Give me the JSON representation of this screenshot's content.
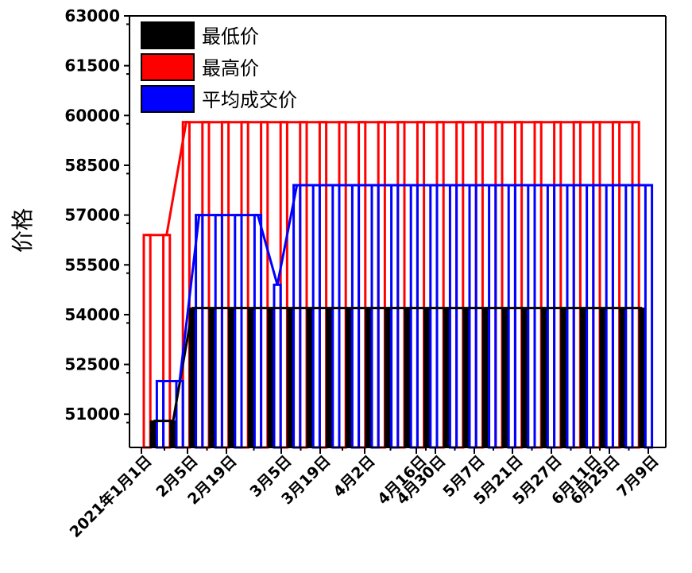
{
  "chart_data": {
    "type": "bar",
    "ylabel": "价格",
    "xlabel": "",
    "ylim": [
      50000,
      63000
    ],
    "yticks": [
      51000,
      52500,
      54000,
      55500,
      57000,
      58500,
      60000,
      61500,
      63000
    ],
    "xtick_labels": [
      "2021年1月1日",
      "2月5日",
      "2月19日",
      "3月5日",
      "3月19日",
      "4月2日",
      "4月16日",
      "4月30日",
      "5月7日",
      "5月21日",
      "5月27日",
      "6月11日",
      "6月25日",
      "7月9日"
    ],
    "legend": {
      "position": "top-left"
    },
    "series": [
      {
        "name": "最低价",
        "color": "#000000",
        "values": [
          50800,
          50800,
          54200,
          54200,
          54200,
          54200,
          54200,
          54200,
          54200,
          54200,
          54200,
          54200,
          54200,
          54200,
          54200,
          54200,
          54200,
          54200,
          54200,
          54200,
          54200,
          54200,
          54200,
          54200,
          54200,
          54200
        ]
      },
      {
        "name": "最高价",
        "color": "#ff0000",
        "values": [
          56400,
          56400,
          59800,
          59800,
          59800,
          59800,
          59800,
          59800,
          59800,
          59800,
          59800,
          59800,
          59800,
          59800,
          59800,
          59800,
          59800,
          59800,
          59800,
          59800,
          59800,
          59800,
          59800,
          59800,
          59800,
          59800
        ]
      },
      {
        "name": "平均成交价",
        "color": "#0000ff",
        "values": [
          52000,
          52000,
          57000,
          57000,
          57000,
          57000,
          54900,
          57900,
          57900,
          57900,
          57900,
          57900,
          57900,
          57900,
          57900,
          57900,
          57900,
          57900,
          57900,
          57900,
          57900,
          57900,
          57900,
          57900,
          57900,
          57900
        ]
      }
    ]
  }
}
